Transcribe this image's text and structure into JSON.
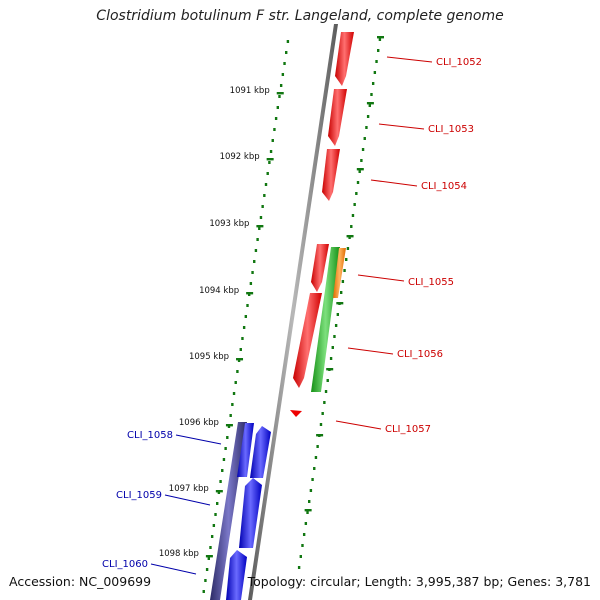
{
  "title": "Clostridium botulinum F str. Langeland, complete genome",
  "footer": {
    "accession": "Accession: NC_009699",
    "topology": "Topology: circular; Length: 3,995,387 bp; Genes: 3,781"
  },
  "colors": {
    "backbone": "#8a8a8a",
    "forward_gene": "#ee0000",
    "forward_label": "#cc0000",
    "reverse_gene": "#0000ee",
    "reverse_label": "#0000aa",
    "rna_feature": "#22bb22",
    "misc_feature": "#ff8800",
    "ruler": "#117711"
  },
  "ruler_ticks": [
    {
      "kbp": 1091,
      "label": "1091 kbp"
    },
    {
      "kbp": 1092,
      "label": "1092 kbp"
    },
    {
      "kbp": 1093,
      "label": "1093 kbp"
    },
    {
      "kbp": 1094,
      "label": "1094 kbp"
    },
    {
      "kbp": 1095,
      "label": "1095 kbp"
    },
    {
      "kbp": 1096,
      "label": "1096 kbp"
    },
    {
      "kbp": 1097,
      "label": "1097 kbp"
    },
    {
      "kbp": 1098,
      "label": "1098 kbp"
    }
  ],
  "genes": [
    {
      "label": "CLI_1052",
      "strand": "forward"
    },
    {
      "label": "CLI_1053",
      "strand": "forward"
    },
    {
      "label": "CLI_1054",
      "strand": "forward"
    },
    {
      "label": "CLI_1055",
      "strand": "forward"
    },
    {
      "label": "CLI_1056",
      "strand": "forward"
    },
    {
      "label": "CLI_1057",
      "strand": "forward"
    },
    {
      "label": "CLI_1058",
      "strand": "reverse"
    },
    {
      "label": "CLI_1059",
      "strand": "reverse"
    },
    {
      "label": "CLI_1060",
      "strand": "reverse"
    }
  ]
}
